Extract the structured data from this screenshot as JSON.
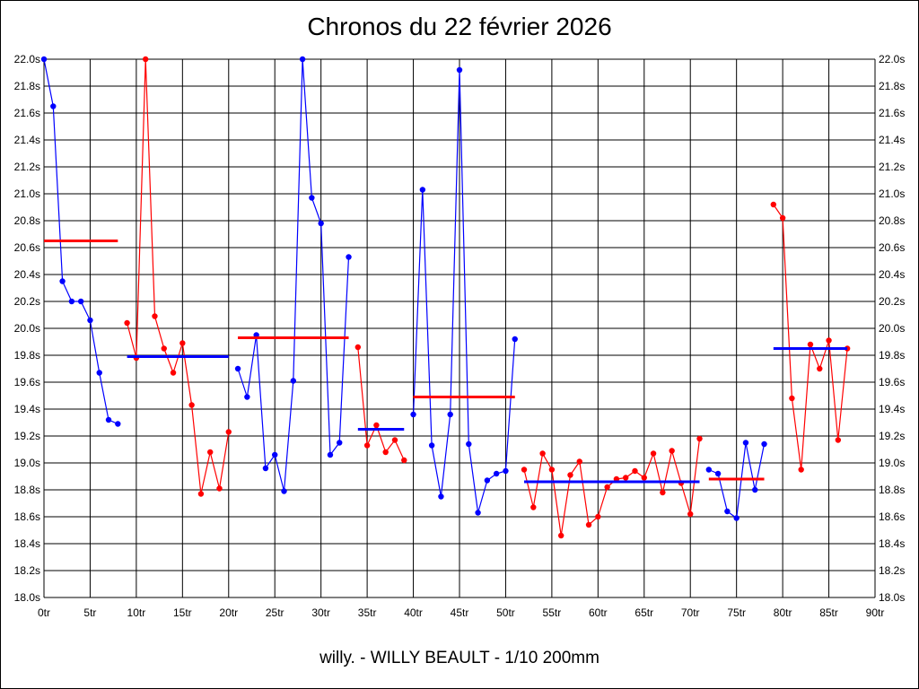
{
  "chart_data": {
    "type": "line",
    "title": "Chronos du 22 février 2026",
    "subtitle": "willy. - WILLY BEAULT - 1/10 200mm",
    "xlim": [
      0,
      90
    ],
    "ylim": [
      18.0,
      22.0
    ],
    "x_ticks": [
      "0tr",
      "5tr",
      "10tr",
      "15tr",
      "20tr",
      "25tr",
      "30tr",
      "35tr",
      "40tr",
      "45tr",
      "50tr",
      "55tr",
      "60tr",
      "65tr",
      "70tr",
      "75tr",
      "80tr",
      "85tr",
      "90tr"
    ],
    "y_ticks": [
      "18.0s",
      "18.2s",
      "18.4s",
      "18.6s",
      "18.8s",
      "19.0s",
      "19.2s",
      "19.4s",
      "19.6s",
      "19.8s",
      "20.0s",
      "20.2s",
      "20.4s",
      "20.6s",
      "20.8s",
      "21.0s",
      "21.2s",
      "21.4s",
      "21.6s",
      "21.8s",
      "22.0s"
    ],
    "grid": true,
    "colors": {
      "blue": "#0000ff",
      "red": "#ff0000",
      "grid": "#000000"
    },
    "series": [
      {
        "color": "blue",
        "mean": 20.65,
        "mean_color": "red",
        "mean_range": [
          0,
          8
        ],
        "x": [
          0,
          1,
          2,
          3,
          4,
          5,
          6,
          7,
          8
        ],
        "y": [
          22.0,
          21.65,
          20.35,
          20.2,
          20.2,
          20.06,
          19.67,
          19.32,
          19.29
        ]
      },
      {
        "color": "red",
        "mean": 19.79,
        "mean_color": "blue",
        "mean_range": [
          9,
          20
        ],
        "x": [
          9,
          10,
          11,
          12,
          13,
          14,
          15,
          16,
          17,
          18,
          19,
          20
        ],
        "y": [
          20.04,
          19.78,
          22.0,
          20.09,
          19.85,
          19.67,
          19.89,
          19.43,
          18.77,
          19.08,
          18.81,
          19.23
        ]
      },
      {
        "color": "blue",
        "mean": 19.93,
        "mean_color": "red",
        "mean_range": [
          21,
          33
        ],
        "x": [
          21,
          22,
          23,
          24,
          25,
          26,
          27,
          28,
          29,
          30,
          31,
          32,
          33
        ],
        "y": [
          19.7,
          19.49,
          19.95,
          18.96,
          19.06,
          18.79,
          19.61,
          22.0,
          20.97,
          20.78,
          19.06,
          19.15,
          20.53
        ]
      },
      {
        "color": "red",
        "mean": 19.25,
        "mean_color": "blue",
        "mean_range": [
          34,
          39
        ],
        "x": [
          34,
          35,
          36,
          37,
          38,
          39
        ],
        "y": [
          19.86,
          19.13,
          19.28,
          19.08,
          19.17,
          19.02
        ]
      },
      {
        "color": "blue",
        "mean": 19.49,
        "mean_color": "red",
        "mean_range": [
          40,
          51
        ],
        "x": [
          40,
          41,
          42,
          43,
          44,
          45,
          46,
          47,
          48,
          49,
          50,
          51
        ],
        "y": [
          19.36,
          21.03,
          19.13,
          18.75,
          19.36,
          21.92,
          19.14,
          18.63,
          18.87,
          18.92,
          18.94,
          19.92
        ]
      },
      {
        "color": "red",
        "mean": 18.86,
        "mean_color": "blue",
        "mean_range": [
          52,
          71
        ],
        "x": [
          52,
          53,
          54,
          55,
          56,
          57,
          58,
          59,
          60,
          61,
          62,
          63,
          64,
          65,
          66,
          67,
          68,
          69,
          70,
          71
        ],
        "y": [
          18.95,
          18.67,
          19.07,
          18.95,
          18.46,
          18.91,
          19.01,
          18.54,
          18.6,
          18.82,
          18.88,
          18.89,
          18.94,
          18.89,
          19.07,
          18.78,
          19.09,
          18.85,
          18.62,
          19.18
        ]
      },
      {
        "color": "blue",
        "mean": 18.88,
        "mean_color": "red",
        "mean_range": [
          72,
          78
        ],
        "x": [
          72,
          73,
          74,
          75,
          76,
          77,
          78
        ],
        "y": [
          18.95,
          18.92,
          18.64,
          18.59,
          19.15,
          18.8,
          19.14
        ]
      },
      {
        "color": "red",
        "mean": 19.85,
        "mean_color": "blue",
        "mean_range": [
          79,
          87
        ],
        "x": [
          79,
          80,
          81,
          82,
          83,
          84,
          85,
          86,
          87
        ],
        "y": [
          20.92,
          20.82,
          19.48,
          18.95,
          19.88,
          19.7,
          19.91,
          19.17,
          19.85
        ]
      }
    ]
  }
}
